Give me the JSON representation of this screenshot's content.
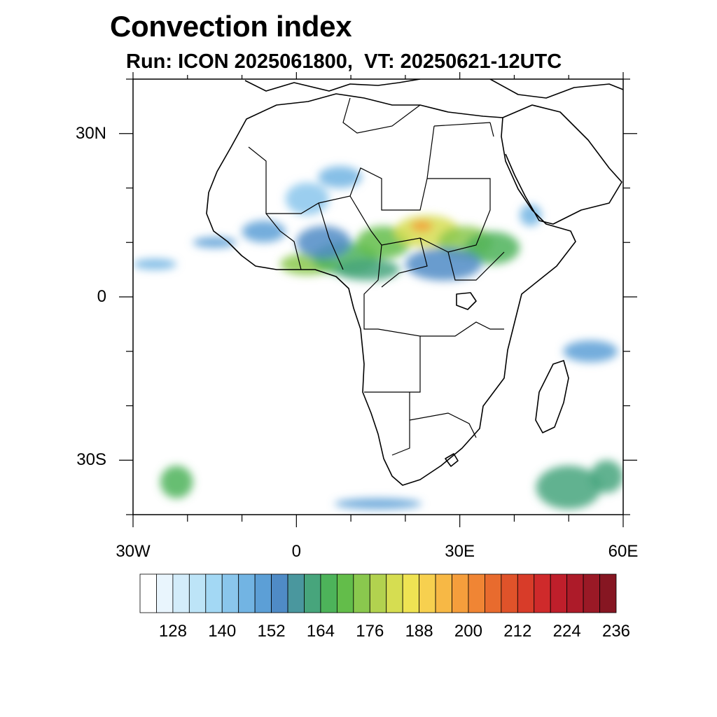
{
  "figure": {
    "title": "Convection index",
    "subtitle": "Run: ICON 2025061800,  VT: 20250621-12UTC"
  },
  "map": {
    "lon_range": [
      -30,
      60
    ],
    "lat_range": [
      -40,
      40
    ],
    "x_ticks": [
      {
        "lon": -30,
        "label": "30W"
      },
      {
        "lon": 0,
        "label": "0"
      },
      {
        "lon": 30,
        "label": "30E"
      },
      {
        "lon": 60,
        "label": "60E"
      }
    ],
    "y_ticks": [
      {
        "lat": 30,
        "label": "30N"
      },
      {
        "lat": 0,
        "label": "0"
      },
      {
        "lat": -30,
        "label": "30S"
      }
    ]
  },
  "colorbar": {
    "colors": [
      "#ffffff",
      "#e9f5fd",
      "#d3ecfa",
      "#bde4f7",
      "#a3d8f4",
      "#8ac6ec",
      "#72b4e3",
      "#5c9fd6",
      "#4f8bc6",
      "#4a979e",
      "#47a57c",
      "#4db35a",
      "#63bd4a",
      "#8ac84e",
      "#b2d24f",
      "#d6dd51",
      "#efe353",
      "#f7d04f",
      "#f7b845",
      "#f59e3c",
      "#f08534",
      "#e86b2e",
      "#e0532a",
      "#d83c29",
      "#cf2a2b",
      "#bf1f2b",
      "#ad1b29",
      "#9a1926",
      "#861622"
    ],
    "labels": [
      "128",
      "140",
      "152",
      "164",
      "176",
      "188",
      "200",
      "212",
      "224",
      "236"
    ]
  },
  "chart_data": {
    "type": "heatmap",
    "title": "Convection index",
    "subtitle": "Run: ICON 2025061800,  VT: 20250621-12UTC",
    "x_range_lon": [
      -30,
      60
    ],
    "y_range_lat": [
      -40,
      40
    ],
    "levels": [
      128,
      140,
      152,
      164,
      176,
      188,
      200,
      212,
      224,
      236
    ],
    "cells": [
      {
        "lon": 2,
        "lat": 6,
        "rx": 5,
        "ry": 2,
        "value": 180
      },
      {
        "lon": 9,
        "lat": 7,
        "rx": 6,
        "ry": 3,
        "value": 168
      },
      {
        "lon": 16,
        "lat": 10,
        "rx": 5,
        "ry": 3,
        "value": 172
      },
      {
        "lon": 13,
        "lat": 5,
        "rx": 6,
        "ry": 2,
        "value": 158
      },
      {
        "lon": 24,
        "lat": 12,
        "rx": 6,
        "ry": 3,
        "value": 190
      },
      {
        "lon": 23,
        "lat": 13,
        "rx": 2,
        "ry": 1,
        "value": 212
      },
      {
        "lon": 31,
        "lat": 10,
        "rx": 5,
        "ry": 3,
        "value": 176
      },
      {
        "lon": 36,
        "lat": 9,
        "rx": 5,
        "ry": 3,
        "value": 164
      },
      {
        "lon": 27,
        "lat": 6,
        "rx": 7,
        "ry": 3,
        "value": 150
      },
      {
        "lon": 5,
        "lat": 10,
        "rx": 5,
        "ry": 3,
        "value": 150
      },
      {
        "lon": -6,
        "lat": 12,
        "rx": 4,
        "ry": 2,
        "value": 142
      },
      {
        "lon": -15,
        "lat": 10,
        "rx": 4,
        "ry": 1,
        "value": 140
      },
      {
        "lon": -26,
        "lat": 6,
        "rx": 4,
        "ry": 1,
        "value": 135
      },
      {
        "lon": 8,
        "lat": 22,
        "rx": 4,
        "ry": 2,
        "value": 138
      },
      {
        "lon": 2,
        "lat": 18,
        "rx": 4,
        "ry": 3,
        "value": 132
      },
      {
        "lon": -22,
        "lat": -34,
        "rx": 3,
        "ry": 3,
        "value": 165
      },
      {
        "lon": 15,
        "lat": -38,
        "rx": 8,
        "ry": 1,
        "value": 145
      },
      {
        "lon": 54,
        "lat": -10,
        "rx": 5,
        "ry": 2,
        "value": 145
      },
      {
        "lon": 50,
        "lat": -35,
        "rx": 6,
        "ry": 4,
        "value": 160
      },
      {
        "lon": 57,
        "lat": -33,
        "rx": 3,
        "ry": 3,
        "value": 162
      },
      {
        "lon": 43,
        "lat": 15,
        "rx": 2,
        "ry": 2,
        "value": 135
      }
    ]
  }
}
